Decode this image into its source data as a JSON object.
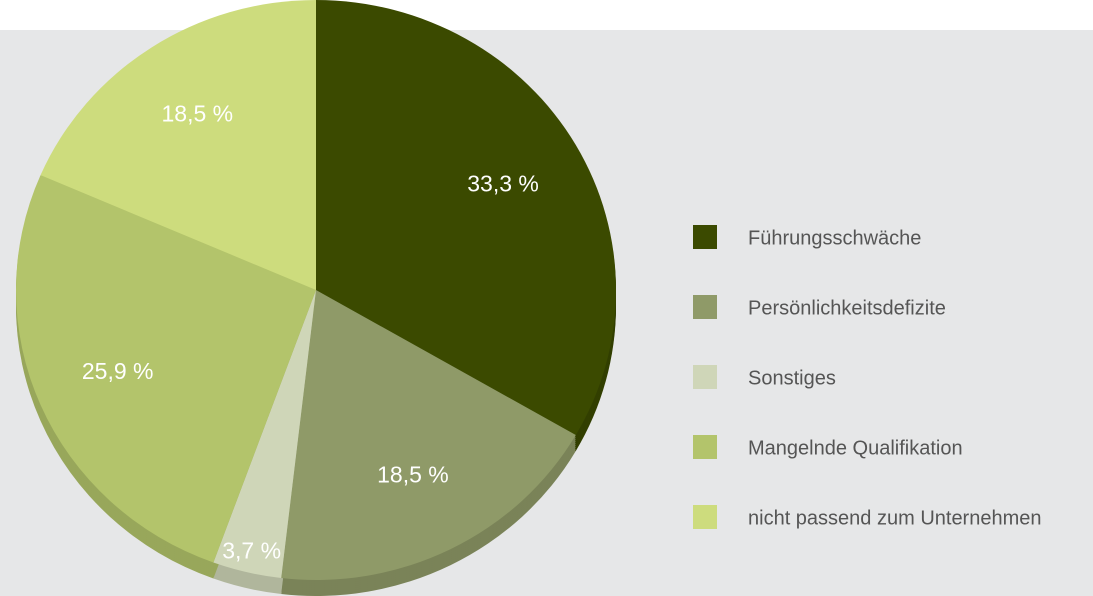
{
  "chart_data": {
    "type": "pie",
    "categories": [
      "Führungsschwäche",
      "Persönlichkeitsdefizite",
      "Sonstiges",
      "Mangelnde Qualifikation",
      "nicht passend zum Unternehmen"
    ],
    "values": [
      33.3,
      18.5,
      3.7,
      25.9,
      18.5
    ],
    "value_labels": [
      "33,3 %",
      "18,5 %",
      "3,7 %",
      "25,9 %",
      "18,5 %"
    ],
    "colors": [
      "#3b4a00",
      "#8f9a68",
      "#cfd6b8",
      "#b3c46b",
      "#cddc7d"
    ],
    "legend": "right"
  }
}
